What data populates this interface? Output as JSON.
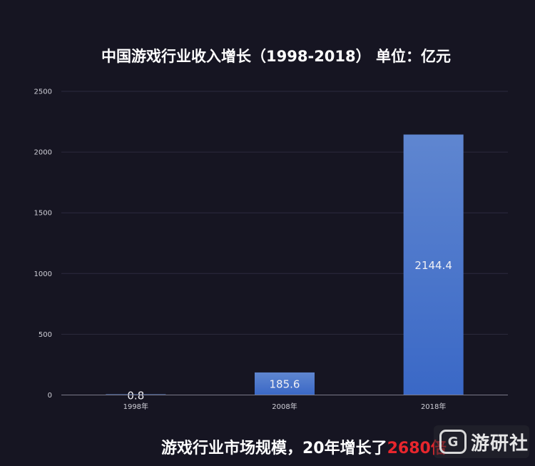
{
  "chart_data": {
    "type": "bar",
    "title": "中国游戏行业收入增长（1998-2018） 单位：亿元",
    "categories": [
      "1998年",
      "2008年",
      "2018年"
    ],
    "values": [
      0.8,
      185.6,
      2144.4
    ],
    "data_labels": [
      "0.8",
      "185.6",
      "2144.4"
    ],
    "yticks": [
      "0",
      "500",
      "1000",
      "1500",
      "2000",
      "2500"
    ],
    "ylim": [
      0,
      2500
    ],
    "grid": true,
    "bar_color": "#3a68c6",
    "bar_color_top": "#5f86d0"
  },
  "caption": {
    "prefix": "游戏行业市场规模，20年增长了",
    "highlight": "2680倍"
  },
  "watermark": {
    "logo_glyph": "G",
    "text": "游研社"
  },
  "colors": {
    "background": "#161522",
    "highlight": "#e8262d"
  }
}
